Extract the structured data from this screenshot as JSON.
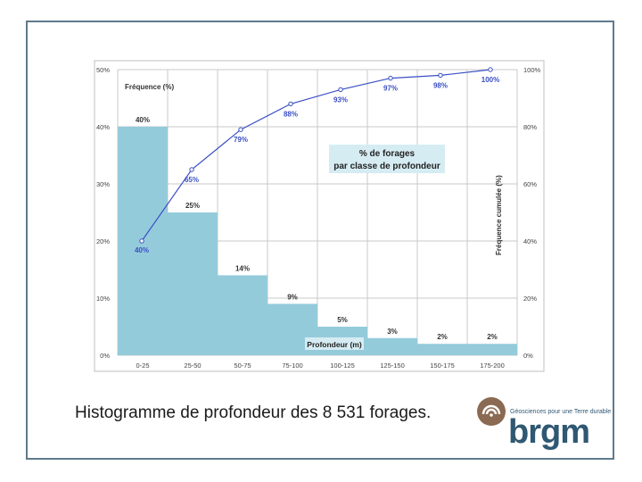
{
  "chart_data": {
    "type": "bar",
    "categories": [
      "0-25",
      "25-50",
      "50-75",
      "75-100",
      "100-125",
      "125-150",
      "150-175",
      "175-200"
    ],
    "values": [
      40,
      25,
      14,
      9,
      5,
      3,
      2,
      2
    ],
    "value_labels": [
      "40%",
      "25%",
      "14%",
      "9%",
      "5%",
      "3%",
      "2%",
      "2%"
    ],
    "cumulative": {
      "values": [
        40,
        65,
        79,
        88,
        93,
        97,
        98,
        100
      ],
      "labels": [
        "40%",
        "65%",
        "79%",
        "88%",
        "93%",
        "97%",
        "98%",
        "100%"
      ],
      "color": "#3a4fc4"
    },
    "bar_color": "#94cbdb",
    "title": "% de forages par classe de profondeur",
    "title_lines": [
      "% de forages",
      "par classe de profondeur"
    ],
    "title_box_color": "#d6ecf3",
    "left_axis_label": "Fréquence (%)",
    "right_axis_label": "Fréquence cumulée (%)",
    "x_axis_label": "Profondeur (m)",
    "left_ylim": [
      0,
      50
    ],
    "left_ticks": [
      "0%",
      "10%",
      "20%",
      "30%",
      "40%",
      "50%"
    ],
    "right_ylim": [
      0,
      100
    ],
    "right_ticks": [
      "0%",
      "20%",
      "40%",
      "60%",
      "80%",
      "100%"
    ],
    "grid": true
  },
  "caption": "Histogramme de profondeur des 8 531 forages.",
  "logo": {
    "word": "brgm",
    "tagline": "Géosciences pour une Terre durable",
    "color": "#2f5872",
    "mark_color": "#8a6a52"
  }
}
